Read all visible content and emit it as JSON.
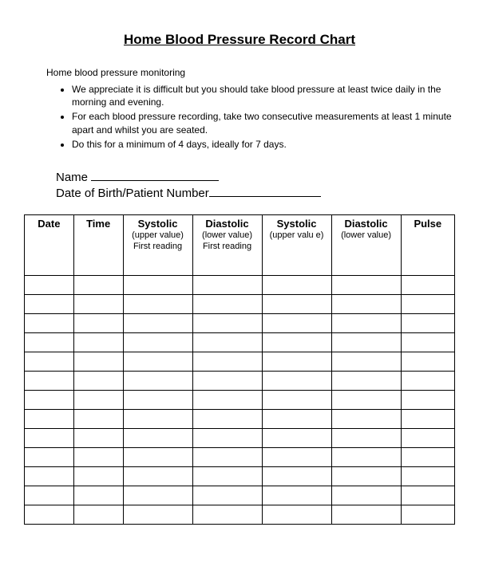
{
  "title": "Home Blood Pressure Record Chart",
  "intro": "Home blood pressure monitoring",
  "bullets": [
    "We appreciate it is difficult but you should take blood pressure at least twice daily in the morning and evening.",
    "For each blood pressure recording, take two consecutive measurements  at least 1 minute apart and whilst you are seated.",
    "Do this for a minimum of 4 days, ideally for 7 days."
  ],
  "fields": {
    "name_label": "Name",
    "dob_label": "Date of Birth/Patient Number"
  },
  "table": {
    "columns": [
      {
        "main": "Date",
        "sub": ""
      },
      {
        "main": "Time",
        "sub": ""
      },
      {
        "main": "Systolic",
        "sub": "(upper value) First reading"
      },
      {
        "main": "Diastolic",
        "sub": "(lower value) First reading"
      },
      {
        "main": "Systolic",
        "sub": "(upper valu e)"
      },
      {
        "main": "Diastolic",
        "sub": "(lower value)"
      },
      {
        "main": "Pulse",
        "sub": ""
      }
    ],
    "row_count": 13
  }
}
